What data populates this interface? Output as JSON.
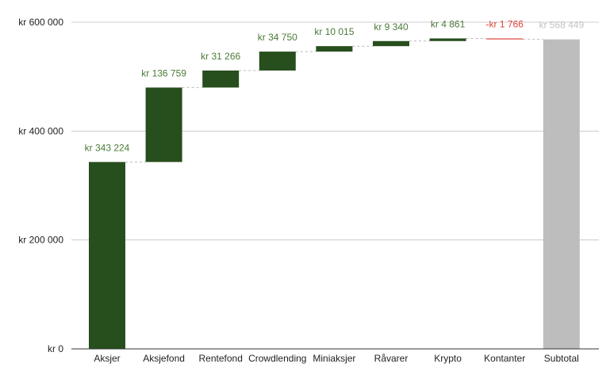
{
  "chart_data": {
    "type": "waterfall",
    "categories": [
      "Aksjer",
      "Aksjefond",
      "Rentefond",
      "Crowdlending",
      "Miniaksjer",
      "Råvarer",
      "Krypto",
      "Kontanter",
      "Subtotal"
    ],
    "values": [
      343224,
      136759,
      31266,
      34750,
      10015,
      9340,
      4861,
      -1766,
      568449
    ],
    "is_total": [
      false,
      false,
      false,
      false,
      false,
      false,
      false,
      false,
      true
    ],
    "data_labels": [
      "kr  343 224",
      "kr  136 759",
      "kr  31 266",
      "kr  34 750",
      "kr  10 015",
      "kr  9 340",
      "kr  4 861",
      "-kr  1 766",
      "kr  568 449"
    ],
    "ylim": [
      0,
      600000
    ],
    "yticks": [
      0,
      200000,
      400000,
      600000
    ],
    "ytick_labels": [
      "kr     0",
      "kr  200 000",
      "kr  400 000",
      "kr  600 000"
    ],
    "grid": true,
    "colors": {
      "increase": "#274e1d",
      "decrease": "#e0443a",
      "total": "#bdbdbd",
      "increase_label": "#4a7a36",
      "decrease_label": "#e0443a",
      "total_label": "#c4c4c4"
    }
  }
}
